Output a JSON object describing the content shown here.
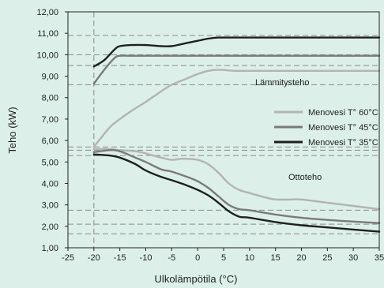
{
  "chart_data": {
    "type": "line",
    "xlabel": "Ulkolämpötila (°C)",
    "ylabel": "Teho (kW)",
    "xlim": [
      -25,
      35
    ],
    "ylim": [
      1.0,
      12.0
    ],
    "x_ticks": [
      "-25",
      "-20",
      "-15",
      "-10",
      "-5",
      "0",
      "5",
      "10",
      "15",
      "20",
      "25",
      "30",
      "35"
    ],
    "x_tick_values": [
      -25,
      -20,
      -15,
      -10,
      -5,
      0,
      5,
      10,
      15,
      20,
      25,
      30,
      35
    ],
    "y_ticks": [
      "1,00",
      "2,00",
      "3,00",
      "4,00",
      "5,00",
      "6,00",
      "7,00",
      "8,00",
      "9,00",
      "10,00",
      "11,00",
      "12,00"
    ],
    "y_tick_values": [
      1,
      2,
      3,
      4,
      5,
      6,
      7,
      8,
      9,
      10,
      11,
      12
    ],
    "grid": false,
    "legend_position": "right",
    "annotations": {
      "heating": "Lämmitysteho",
      "intake": "Ottoteho"
    },
    "series": [
      {
        "name": "Menovesi T° 60°C",
        "color": "#b3b3b3",
        "heating": {
          "x": [
            -20,
            -17,
            -15,
            -12,
            -10,
            -7,
            -5,
            -2,
            0,
            2,
            4,
            7,
            10,
            15,
            20,
            25,
            30,
            35
          ],
          "y": [
            5.7,
            6.6,
            7.0,
            7.5,
            7.8,
            8.3,
            8.6,
            8.9,
            9.1,
            9.25,
            9.3,
            9.25,
            9.25,
            9.25,
            9.25,
            9.25,
            9.25,
            9.25
          ]
        },
        "intake": {
          "x": [
            -20,
            -17,
            -15,
            -12,
            -10,
            -7,
            -5,
            -3,
            0,
            2,
            4,
            6,
            8,
            10,
            13,
            15,
            18,
            20,
            25,
            30,
            35
          ],
          "y": [
            5.6,
            5.6,
            5.55,
            5.5,
            5.4,
            5.2,
            5.1,
            5.15,
            5.1,
            4.9,
            4.5,
            4.0,
            3.7,
            3.55,
            3.35,
            3.25,
            3.25,
            3.25,
            3.1,
            2.95,
            2.8
          ]
        }
      },
      {
        "name": "Menovesi T° 45°C",
        "color": "#7a7a7a",
        "heating": {
          "x": [
            -20,
            -18,
            -16,
            -15,
            -13,
            -10,
            -5,
            0,
            5,
            10,
            15,
            20,
            25,
            30,
            35
          ],
          "y": [
            8.65,
            9.3,
            9.85,
            9.95,
            9.95,
            9.95,
            9.95,
            9.95,
            9.95,
            9.95,
            9.95,
            9.95,
            9.95,
            9.95,
            9.95
          ]
        },
        "intake": {
          "x": [
            -20,
            -17,
            -15,
            -12,
            -10,
            -7,
            -5,
            -2,
            0,
            2,
            4,
            6,
            8,
            10,
            15,
            20,
            25,
            30,
            35
          ],
          "y": [
            5.45,
            5.55,
            5.5,
            5.2,
            5.0,
            4.65,
            4.55,
            4.3,
            4.1,
            3.8,
            3.4,
            3.0,
            2.8,
            2.75,
            2.55,
            2.4,
            2.3,
            2.22,
            2.15
          ]
        }
      },
      {
        "name": "Menovesi T° 35°C",
        "color": "#1f1f1f",
        "heating": {
          "x": [
            -20,
            -18,
            -16,
            -15,
            -13,
            -10,
            -7,
            -5,
            -3,
            0,
            2,
            4,
            6,
            10,
            15,
            20,
            25,
            30,
            35
          ],
          "y": [
            9.45,
            9.75,
            10.25,
            10.4,
            10.45,
            10.45,
            10.4,
            10.4,
            10.5,
            10.65,
            10.75,
            10.8,
            10.8,
            10.8,
            10.8,
            10.8,
            10.8,
            10.8,
            10.8
          ]
        },
        "intake": {
          "x": [
            -20,
            -17,
            -15,
            -12,
            -10,
            -7,
            -5,
            -2,
            0,
            2,
            4,
            6,
            8,
            10,
            15,
            20,
            25,
            30,
            35
          ],
          "y": [
            5.35,
            5.3,
            5.2,
            4.9,
            4.6,
            4.3,
            4.15,
            3.9,
            3.7,
            3.45,
            3.1,
            2.7,
            2.45,
            2.4,
            2.2,
            2.05,
            1.95,
            1.85,
            1.75
          ]
        }
      }
    ],
    "reference_lines": {
      "vertical_x": [
        -20
      ],
      "horizontal_y": [
        10.9,
        10.0,
        9.5,
        8.6,
        5.7,
        5.55,
        5.3,
        2.75,
        2.1,
        1.65
      ]
    }
  }
}
